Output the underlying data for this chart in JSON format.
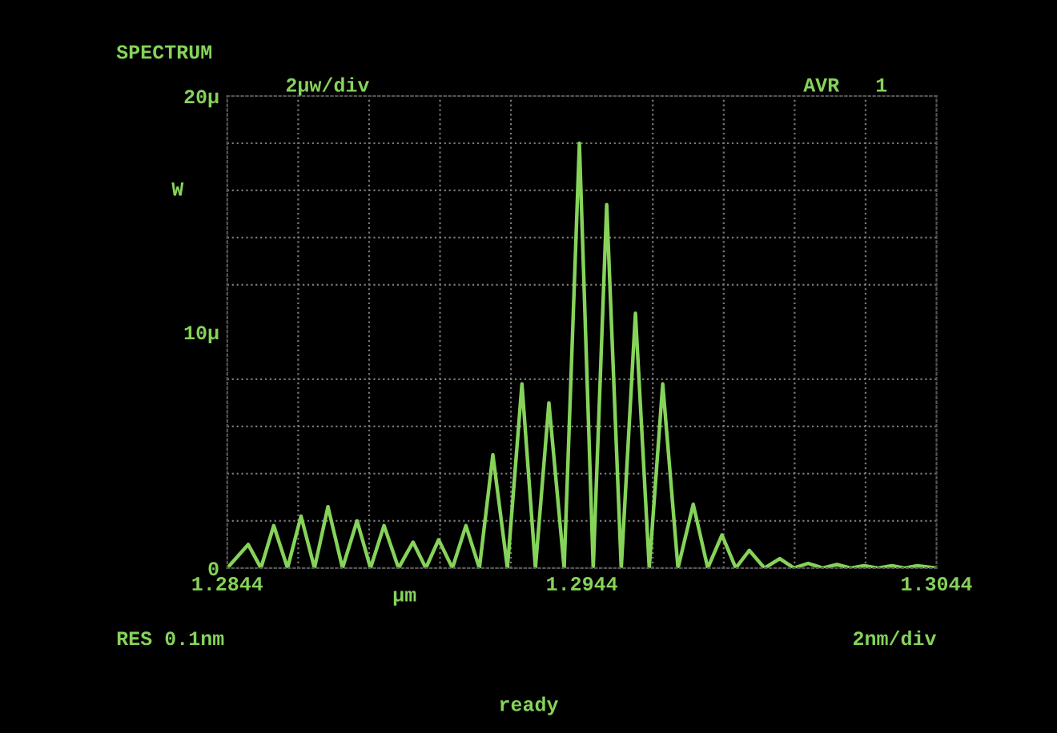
{
  "chart_data": {
    "type": "line",
    "title": "SPECTRUM",
    "subtitle": "2µw/div",
    "xlabel": "µm",
    "ylabel": "W",
    "annotations": [
      "AVR   1",
      "RES 0.1nm",
      "2nm/div",
      "ready"
    ],
    "x": [
      1.2844,
      1.28499,
      1.28535,
      1.28571,
      1.2861,
      1.28648,
      1.28686,
      1.28724,
      1.28765,
      1.28806,
      1.28844,
      1.28882,
      1.28923,
      1.28964,
      1.29,
      1.29036,
      1.29075,
      1.29113,
      1.29151,
      1.29189,
      1.2923,
      1.29271,
      1.29309,
      1.29347,
      1.2939,
      1.29433,
      1.29472,
      1.2951,
      1.29551,
      1.29591,
      1.2963,
      1.29668,
      1.29711,
      1.29754,
      1.29795,
      1.29835,
      1.29874,
      1.29912,
      1.29955,
      1.29998,
      1.30038,
      1.30078,
      1.30119,
      1.30159,
      1.30198,
      1.30236,
      1.30275,
      1.30314,
      1.3035,
      1.30386,
      1.3044
    ],
    "series": [
      {
        "color": "#86d35a",
        "values": [
          0,
          1.0,
          0,
          1.8,
          0,
          2.2,
          0,
          2.6,
          0,
          2.0,
          0,
          1.8,
          0,
          1.1,
          0,
          1.2,
          0,
          1.8,
          0,
          4.8,
          0,
          7.8,
          0,
          7.0,
          0,
          18.0,
          0,
          15.4,
          0,
          10.8,
          0,
          7.8,
          0,
          2.7,
          0,
          1.4,
          0,
          0.75,
          0,
          0.4,
          0,
          0.2,
          0,
          0.15,
          0,
          0.1,
          0,
          0.1,
          0,
          0.1,
          0
        ]
      }
    ],
    "xlim": [
      1.2844,
      1.3044
    ],
    "xticks": [
      1.2844,
      1.2944,
      1.3044
    ],
    "ylim": [
      0,
      20
    ],
    "yticks": [
      {
        "value": 0,
        "label": "0"
      },
      {
        "value": 10,
        "label": "10µ"
      },
      {
        "value": 20,
        "label": "20µ"
      }
    ],
    "grid": true,
    "legend": false,
    "marker": "none",
    "line_style": "solid"
  }
}
